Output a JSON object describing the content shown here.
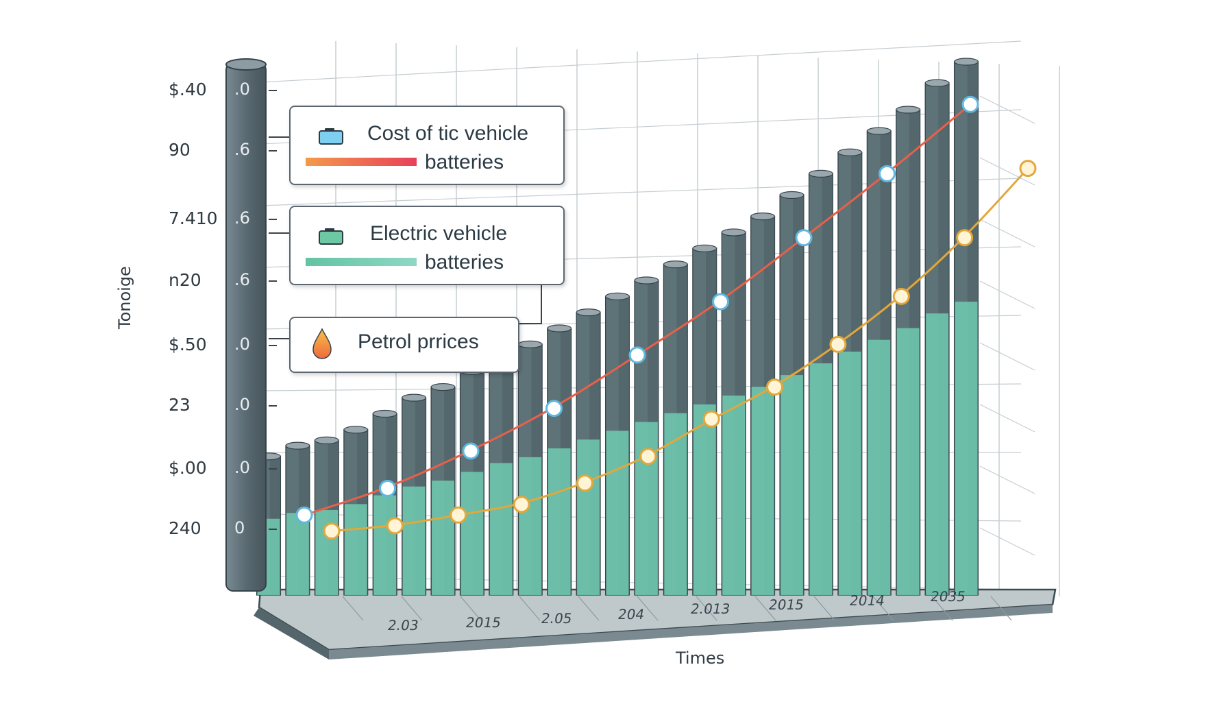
{
  "legend": {
    "cost_line1": "Cost of tic  vehicle",
    "cost_line2": "batteries",
    "ev_line1": "Electric  vehicle",
    "ev_line2": "batteries",
    "petrol": "Petrol prrices"
  },
  "y_axis": {
    "label": "Tonoige",
    "ticks": [
      "$.40",
      "90",
      "7.410",
      "n20",
      "$.50",
      "23",
      "$.00",
      "240"
    ],
    "pillar_ticks": [
      ".0",
      ".6",
      ".6",
      ".6",
      ".0",
      ".0",
      ".0",
      "0"
    ]
  },
  "x_axis": {
    "label": "Times",
    "ticks": [
      "2.03",
      "2015",
      "2.05",
      "204",
      "2.013",
      "2015",
      "2014",
      "2035"
    ]
  },
  "colors": {
    "dark_bar": "#5e7378",
    "teal_fill": "#6fcbb0",
    "cost_line": "#e8604a",
    "petrol_line": "#e3a73a",
    "ev_marker": "#5fb8e0",
    "pillar": "#5a6a72"
  },
  "chart_data": {
    "type": "bar",
    "title": "",
    "xlabel": "Times",
    "ylabel": "Tonoige",
    "series": [
      {
        "name": "Electric  vehicle batteries",
        "kind": "bar",
        "values": [
          0.26,
          0.28,
          0.29,
          0.31,
          0.34,
          0.37,
          0.39,
          0.42,
          0.45,
          0.47,
          0.5,
          0.53,
          0.56,
          0.59,
          0.62,
          0.65,
          0.68,
          0.71,
          0.75,
          0.79,
          0.83,
          0.87,
          0.91,
          0.96,
          1.0
        ]
      },
      {
        "name": "Cost of tic  vehicle batteries",
        "kind": "line",
        "values": [
          0.15,
          0.2,
          0.27,
          0.35,
          0.45,
          0.55,
          0.67,
          0.79,
          0.92
        ]
      },
      {
        "name": "Petrol prrices",
        "kind": "line",
        "values": [
          0.12,
          0.13,
          0.15,
          0.17,
          0.21,
          0.26,
          0.33,
          0.39,
          0.47,
          0.56,
          0.67,
          0.8
        ]
      }
    ]
  }
}
